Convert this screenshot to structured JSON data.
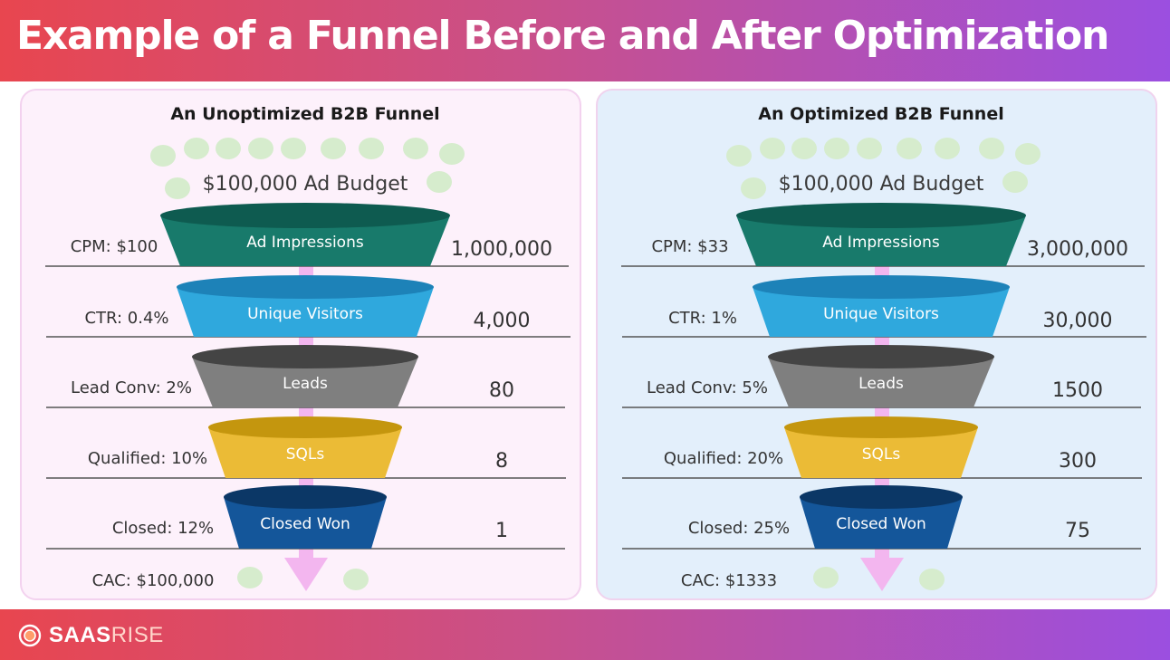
{
  "header": {
    "title": "Example of a Funnel Before and After Optimization"
  },
  "footer": {
    "brand_part1": "SAAS",
    "brand_part2": "RISE"
  },
  "funnels": [
    {
      "title": "An Unoptimized  B2B Funnel",
      "budget": "$100,000 Ad Budget",
      "stages": [
        {
          "label": "Ad Impressions",
          "metric": "CPM: $100",
          "value": "1,000,000"
        },
        {
          "label": "Unique Visitors",
          "metric": "CTR: 0.4%",
          "value": "4,000"
        },
        {
          "label": "Leads",
          "metric": "Lead Conv: 2%",
          "value": "80"
        },
        {
          "label": "SQLs",
          "metric": "Qualified: 10%",
          "value": "8"
        },
        {
          "label": "Closed Won",
          "metric": "Closed: 12%",
          "value": "1"
        }
      ],
      "cac": "CAC: $100,000"
    },
    {
      "title": "An Optimized B2B Funnel",
      "budget": "$100,000 Ad Budget",
      "stages": [
        {
          "label": "Ad Impressions",
          "metric": "CPM: $33",
          "value": "3,000,000"
        },
        {
          "label": "Unique Visitors",
          "metric": "CTR: 1%",
          "value": "30,000"
        },
        {
          "label": "Leads",
          "metric": "Lead Conv: 5%",
          "value": "1500"
        },
        {
          "label": "SQLs",
          "metric": "Qualified: 20%",
          "value": "300"
        },
        {
          "label": "Closed Won",
          "metric": "Closed: 25%",
          "value": "75"
        }
      ],
      "cac": "CAC: $1333"
    }
  ],
  "colors": {
    "stage_body": [
      "#187a6b",
      "#2fa8dd",
      "#7f7f7f",
      "#ebbb36",
      "#14569a"
    ],
    "stage_top": [
      "#0e5b50",
      "#1d82b8",
      "#444444",
      "#c4960e",
      "#0b3766"
    ],
    "coin": "#d6eccd",
    "arrow": "#f3b6ef",
    "rule": "#555555"
  }
}
